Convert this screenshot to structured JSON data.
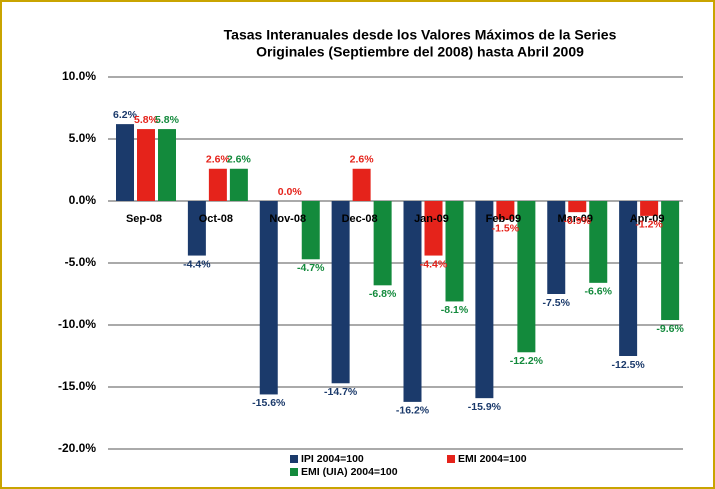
{
  "chart_data": {
    "type": "bar",
    "title": [
      "Tasas Interanuales desde los Valores Máximos de la Series",
      "Originales (Septiembre del 2008) hasta Abril 2009"
    ],
    "categories": [
      "Sep-08",
      "Oct-08",
      "Nov-08",
      "Dec-08",
      "Jan-09",
      "Feb-09",
      "Mar-09",
      "Apr-09"
    ],
    "series": [
      {
        "name": "IPI 2004=100",
        "color": "#1b3a6b",
        "values": [
          6.2,
          -4.4,
          -15.6,
          -14.7,
          -16.2,
          -15.9,
          -7.5,
          -12.5
        ],
        "value_labels": [
          "6.2%",
          "-4.4%",
          "-15.6%",
          "-14.7%",
          "-16.2%",
          "-15.9%",
          "-7.5%",
          "-12.5%"
        ]
      },
      {
        "name": "EMI 2004=100",
        "color": "#e5231b",
        "values": [
          5.8,
          2.6,
          0.0,
          2.6,
          -4.4,
          -1.5,
          -0.9,
          -1.2
        ],
        "value_labels": [
          "5.8%",
          "2.6%",
          "0.0%",
          "2.6%",
          "-4.4%",
          "-1.5%",
          "-0.9%",
          "-1.2%"
        ]
      },
      {
        "name": "EMI (UIA) 2004=100",
        "color": "#138a3c",
        "values": [
          5.8,
          2.6,
          -4.7,
          -6.8,
          -8.1,
          -12.2,
          -6.6,
          -9.6
        ],
        "value_labels": [
          "5.8%",
          "2.6%",
          "-4.7%",
          "-6.8%",
          "-8.1%",
          "-12.2%",
          "-6.6%",
          "-9.6%"
        ]
      }
    ],
    "ylim": [
      -20,
      10
    ],
    "yticks": [
      {
        "value": -20,
        "label": "-20.0%"
      },
      {
        "value": -15,
        "label": "-15.0%"
      },
      {
        "value": -10,
        "label": "-10.0%"
      },
      {
        "value": -5,
        "label": "-5.0%"
      },
      {
        "value": 0,
        "label": "0.0%"
      },
      {
        "value": 5,
        "label": "5.0%"
      },
      {
        "value": 10,
        "label": "10.0%"
      }
    ],
    "grid": true
  }
}
